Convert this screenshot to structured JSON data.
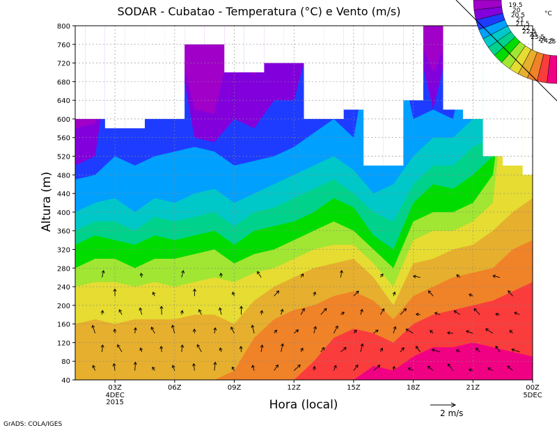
{
  "chart_data": {
    "type": "heatmap",
    "title": "SODAR - Cubatao - Temperatura (°C) e Vento (m/s)",
    "xlabel": "Hora (local)",
    "ylabel": "Altura (m)",
    "credit": "GrADS: COLA/IGES",
    "ylim": [
      40,
      800
    ],
    "yticks": [
      40,
      80,
      120,
      160,
      200,
      240,
      280,
      320,
      360,
      400,
      440,
      480,
      520,
      560,
      600,
      640,
      680,
      720,
      760,
      800
    ],
    "xlim": [
      "2015-12-04T01:00Z",
      "2015-12-05T00:00Z"
    ],
    "xticks": [
      {
        "label": "03Z",
        "sub": [
          "4DEC",
          "2015"
        ]
      },
      {
        "label": "06Z",
        "sub": []
      },
      {
        "label": "09Z",
        "sub": []
      },
      {
        "label": "12Z",
        "sub": []
      },
      {
        "label": "15Z",
        "sub": []
      },
      {
        "label": "18Z",
        "sub": []
      },
      {
        "label": "21Z",
        "sub": []
      },
      {
        "label": "00Z",
        "sub": [
          "5DEC"
        ]
      }
    ],
    "wind_reference": "2 m/s",
    "colorbar": {
      "unit": "°C",
      "levels": [
        "19.5",
        "20",
        "20.5",
        "21",
        "21.5",
        "22",
        "22.5",
        "23",
        "23.5",
        "24",
        "24.5",
        "25"
      ],
      "colors": [
        "#a000c8",
        "#8200dc",
        "#1e3cff",
        "#00a0ff",
        "#00c8c8",
        "#00d28c",
        "#00dc00",
        "#a0e632",
        "#e6dc32",
        "#e6af2d",
        "#f08228",
        "#fa3c3c",
        "#f00082"
      ]
    },
    "temperature_profiles": {
      "times": [
        "01:00",
        "02:00",
        "03:00",
        "04:00",
        "05:00",
        "06:00",
        "07:00",
        "08:00",
        "09:00",
        "10:00",
        "11:00",
        "12:00",
        "13:00",
        "14:00",
        "15:00",
        "16:00",
        "17:00",
        "18:00",
        "19:00",
        "20:00",
        "21:00",
        "22:00",
        "23:00",
        "00:00 5DEC"
      ],
      "data_top_m": [
        600,
        600,
        580,
        580,
        600,
        600,
        760,
        760,
        700,
        700,
        720,
        720,
        600,
        600,
        620,
        500,
        500,
        640,
        800,
        620,
        600,
        520,
        500,
        480
      ],
      "isoline_heights_m": {
        "19.5": [
          580,
          590,
          9999,
          9999,
          9999,
          9999,
          620,
          610,
          9999,
          690,
          9999,
          9999,
          9999,
          9999,
          9999,
          9999,
          9999,
          9999,
          700,
          9999,
          9999,
          9999,
          9999,
          9999
        ],
        "20": [
          500,
          520,
          9999,
          9999,
          9999,
          9999,
          560,
          550,
          600,
          580,
          640,
          640,
          9999,
          9999,
          9999,
          9999,
          9999,
          9999,
          620,
          9999,
          9999,
          9999,
          9999,
          9999
        ],
        "20.5": [
          470,
          480,
          520,
          500,
          520,
          530,
          540,
          530,
          500,
          510,
          520,
          540,
          570,
          600,
          560,
          9999,
          9999,
          600,
          620,
          600,
          9999,
          9999,
          9999,
          9999
        ],
        "21": [
          400,
          420,
          430,
          400,
          430,
          420,
          440,
          450,
          420,
          440,
          460,
          480,
          500,
          520,
          490,
          440,
          460,
          520,
          560,
          560,
          600,
          9999,
          9999,
          9999
        ],
        "21.5": [
          360,
          380,
          380,
          360,
          390,
          380,
          390,
          400,
          370,
          400,
          410,
          430,
          450,
          470,
          440,
          400,
          380,
          460,
          500,
          500,
          540,
          560,
          9999,
          9999
        ],
        "22": [
          330,
          350,
          340,
          330,
          350,
          340,
          350,
          360,
          330,
          360,
          370,
          380,
          400,
          430,
          410,
          350,
          320,
          420,
          460,
          450,
          480,
          520,
          9999,
          9999
        ],
        "22.5": [
          280,
          300,
          300,
          280,
          300,
          300,
          310,
          320,
          290,
          310,
          320,
          340,
          360,
          380,
          360,
          320,
          280,
          380,
          400,
          400,
          420,
          480,
          9999,
          9999
        ],
        "23": [
          240,
          250,
          250,
          240,
          250,
          240,
          250,
          260,
          250,
          270,
          280,
          300,
          320,
          330,
          330,
          290,
          240,
          340,
          360,
          360,
          380,
          420,
          9999,
          9999
        ],
        "23.5": [
          160,
          170,
          160,
          170,
          170,
          170,
          180,
          180,
          160,
          210,
          240,
          260,
          280,
          290,
          300,
          260,
          200,
          290,
          300,
          320,
          330,
          360,
          400,
          430
        ],
        "24": [
          0,
          0,
          0,
          0,
          0,
          0,
          0,
          0,
          60,
          130,
          170,
          190,
          200,
          220,
          230,
          210,
          170,
          220,
          240,
          260,
          270,
          280,
          320,
          340
        ],
        "24.5": [
          0,
          0,
          0,
          0,
          0,
          0,
          0,
          0,
          0,
          0,
          0,
          40,
          80,
          130,
          150,
          140,
          120,
          160,
          180,
          190,
          200,
          210,
          230,
          250
        ],
        "25": [
          0,
          0,
          0,
          0,
          0,
          0,
          0,
          0,
          0,
          0,
          0,
          0,
          0,
          0,
          40,
          70,
          60,
          90,
          110,
          110,
          120,
          110,
          100,
          90
        ]
      }
    }
  }
}
